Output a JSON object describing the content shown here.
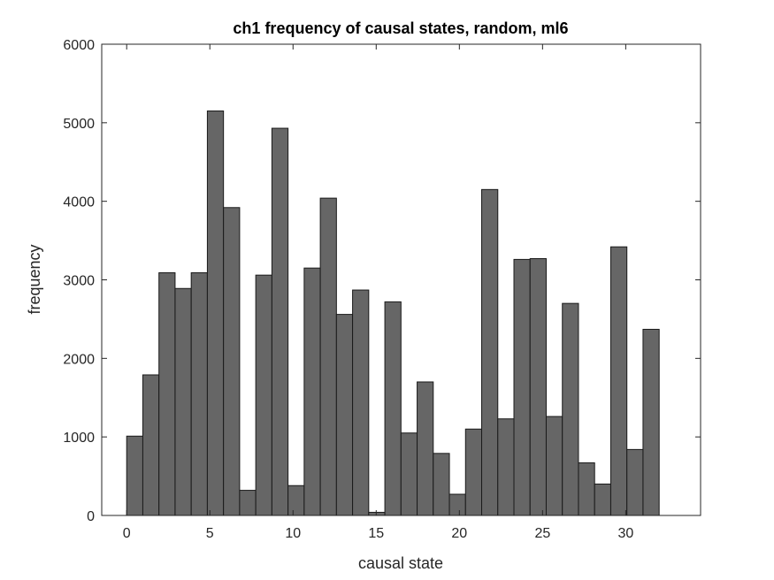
{
  "chart_data": {
    "type": "bar",
    "title": "ch1 frequency of causal states, random, ml6",
    "xlabel": "causal state",
    "ylabel": "frequency",
    "xlim": [
      -1.5,
      34.5
    ],
    "ylim": [
      0,
      6000
    ],
    "xticks": [
      0,
      5,
      10,
      15,
      20,
      25,
      30
    ],
    "yticks": [
      0,
      1000,
      2000,
      3000,
      4000,
      5000,
      6000
    ],
    "bin_edges_start": 0,
    "bin_width": 0.97,
    "values": [
      1010,
      1790,
      3090,
      2890,
      3090,
      5150,
      3920,
      320,
      3060,
      4930,
      380,
      3150,
      4040,
      2560,
      2870,
      40,
      2720,
      1050,
      1700,
      790,
      270,
      1100,
      4150,
      1230,
      3260,
      3270,
      1260,
      2700,
      670,
      400,
      3420,
      840,
      2370
    ],
    "bar_color": "#666666",
    "edge_color": "#1a1a1a",
    "grid": false
  }
}
